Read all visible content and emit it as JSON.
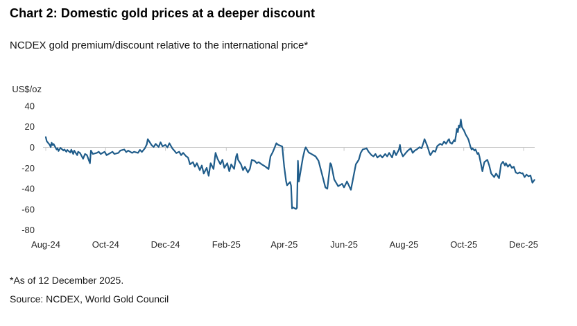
{
  "header": {
    "title": "Chart 2: Domestic gold prices at a deeper discount",
    "subtitle": "NCDEX gold premium/discount relative to the international price*"
  },
  "footnotes": {
    "asof": "*As of 12 December 2025.",
    "source": "Source: NCDEX, World Gold Council"
  },
  "chart_data": {
    "type": "line",
    "title": "Chart 2: Domestic gold prices at a deeper discount",
    "subtitle": "NCDEX gold premium/discount relative to the international price*",
    "unit_label": "US$/oz",
    "xlabel": "",
    "ylabel": "US$/oz",
    "ylim": [
      -80,
      40
    ],
    "y_ticks": [
      40,
      20,
      0,
      -20,
      -40,
      -60,
      -80
    ],
    "x_ticks": [
      {
        "label": "Aug-24",
        "date": "2024-08-01"
      },
      {
        "label": "Oct-24",
        "date": "2024-10-01"
      },
      {
        "label": "Dec-24",
        "date": "2024-12-01"
      },
      {
        "label": "Feb-25",
        "date": "2025-02-01"
      },
      {
        "label": "Apr-25",
        "date": "2025-04-01"
      },
      {
        "label": "Jun-25",
        "date": "2025-06-01"
      },
      {
        "label": "Aug-25",
        "date": "2025-08-01"
      },
      {
        "label": "Oct-25",
        "date": "2025-10-01"
      },
      {
        "label": "Dec-25",
        "date": "2025-12-01"
      }
    ],
    "grid": false,
    "legend": "none",
    "line_color": "#1f5c8a",
    "axis_color": "#c8c8c8",
    "series": [
      {
        "name": "NCDEX gold premium/discount relative to international price (US$/oz)",
        "points": [
          [
            "2024-08-01",
            10
          ],
          [
            "2024-08-02",
            6
          ],
          [
            "2024-08-05",
            2.5
          ],
          [
            "2024-08-06",
            0.3
          ],
          [
            "2024-08-07",
            4.5
          ],
          [
            "2024-08-08",
            2.3
          ],
          [
            "2024-08-09",
            3.3
          ],
          [
            "2024-08-12",
            -2
          ],
          [
            "2024-08-13",
            -0.8
          ],
          [
            "2024-08-14",
            -3.5
          ],
          [
            "2024-08-16",
            -0.5
          ],
          [
            "2024-08-19",
            -3
          ],
          [
            "2024-08-20",
            -2
          ],
          [
            "2024-08-22",
            -4.2
          ],
          [
            "2024-08-23",
            -2.5
          ],
          [
            "2024-08-26",
            -5
          ],
          [
            "2024-08-27",
            -2.2
          ],
          [
            "2024-08-29",
            -6.4
          ],
          [
            "2024-08-30",
            -3.1
          ],
          [
            "2024-09-02",
            -7.5
          ],
          [
            "2024-09-03",
            -4.2
          ],
          [
            "2024-09-05",
            -5.5
          ],
          [
            "2024-09-08",
            -11
          ],
          [
            "2024-09-10",
            -6.4
          ],
          [
            "2024-09-12",
            -7.5
          ],
          [
            "2024-09-15",
            -15.3
          ],
          [
            "2024-09-16",
            -3.1
          ],
          [
            "2024-09-18",
            -6.4
          ],
          [
            "2024-09-22",
            -5.3
          ],
          [
            "2024-09-24",
            -4.2
          ],
          [
            "2024-09-26",
            -6.4
          ],
          [
            "2024-09-30",
            -4.2
          ],
          [
            "2024-10-02",
            -7.5
          ],
          [
            "2024-10-06",
            -5.3
          ],
          [
            "2024-10-08",
            -4.2
          ],
          [
            "2024-10-10",
            -6.4
          ],
          [
            "2024-10-14",
            -5.3
          ],
          [
            "2024-10-16",
            -3.1
          ],
          [
            "2024-10-20",
            -2
          ],
          [
            "2024-10-22",
            -4.5
          ],
          [
            "2024-10-24",
            -3.1
          ],
          [
            "2024-10-28",
            -5.3
          ],
          [
            "2024-10-30",
            -4.2
          ],
          [
            "2024-11-03",
            -5.3
          ],
          [
            "2024-11-05",
            -2.4
          ],
          [
            "2024-11-07",
            -4.4
          ],
          [
            "2024-11-10",
            -0.9
          ],
          [
            "2024-11-12",
            3
          ],
          [
            "2024-11-13",
            8
          ],
          [
            "2024-11-17",
            2
          ],
          [
            "2024-11-19",
            0.4
          ],
          [
            "2024-11-21",
            3.4
          ],
          [
            "2024-11-24",
            0.4
          ],
          [
            "2024-11-26",
            5
          ],
          [
            "2024-11-28",
            1
          ],
          [
            "2024-12-01",
            2.4
          ],
          [
            "2024-12-03",
            0
          ],
          [
            "2024-12-05",
            4
          ],
          [
            "2024-12-08",
            -1
          ],
          [
            "2024-12-10",
            -3.1
          ],
          [
            "2024-12-12",
            -5.5
          ],
          [
            "2024-12-15",
            -4.2
          ],
          [
            "2024-12-17",
            -7.5
          ],
          [
            "2024-12-19",
            -5.3
          ],
          [
            "2024-12-22",
            -8.5
          ],
          [
            "2024-12-24",
            -9.8
          ],
          [
            "2024-12-26",
            -16.4
          ],
          [
            "2024-12-29",
            -14.2
          ],
          [
            "2024-12-31",
            -18.7
          ],
          [
            "2025-01-02",
            -15.3
          ],
          [
            "2025-01-05",
            -22
          ],
          [
            "2025-01-07",
            -17.5
          ],
          [
            "2025-01-09",
            -25.3
          ],
          [
            "2025-01-12",
            -19.8
          ],
          [
            "2025-01-14",
            -27.5
          ],
          [
            "2025-01-16",
            -15.3
          ],
          [
            "2025-01-19",
            -20.9
          ],
          [
            "2025-01-21",
            -5.3
          ],
          [
            "2025-01-23",
            -10.9
          ],
          [
            "2025-01-26",
            -16.4
          ],
          [
            "2025-01-28",
            -12
          ],
          [
            "2025-01-30",
            -19.8
          ],
          [
            "2025-02-02",
            -15.3
          ],
          [
            "2025-02-04",
            -23.1
          ],
          [
            "2025-02-06",
            -16.4
          ],
          [
            "2025-02-09",
            -20.9
          ],
          [
            "2025-02-11",
            -8.7
          ],
          [
            "2025-02-12",
            -6.4
          ],
          [
            "2025-02-13",
            -12
          ],
          [
            "2025-02-16",
            -16.4
          ],
          [
            "2025-02-18",
            -22
          ],
          [
            "2025-02-20",
            -18.7
          ],
          [
            "2025-02-23",
            -24.2
          ],
          [
            "2025-02-25",
            -20.9
          ],
          [
            "2025-02-27",
            -12
          ],
          [
            "2025-03-02",
            -13.1
          ],
          [
            "2025-03-04",
            -15.3
          ],
          [
            "2025-03-06",
            -14.2
          ],
          [
            "2025-03-09",
            -16.4
          ],
          [
            "2025-03-11",
            -17.5
          ],
          [
            "2025-03-13",
            -18.7
          ],
          [
            "2025-03-16",
            -21
          ],
          [
            "2025-03-18",
            -8.7
          ],
          [
            "2025-03-20",
            -5.3
          ],
          [
            "2025-03-22",
            -0.9
          ],
          [
            "2025-03-24",
            4
          ],
          [
            "2025-03-26",
            2.4
          ],
          [
            "2025-03-30",
            0.9
          ],
          [
            "2025-04-01",
            -18.7
          ],
          [
            "2025-04-03",
            -33
          ],
          [
            "2025-04-04",
            -36.7
          ],
          [
            "2025-04-07",
            -33.5
          ],
          [
            "2025-04-08",
            -37
          ],
          [
            "2025-04-09",
            -59
          ],
          [
            "2025-04-10",
            -58
          ],
          [
            "2025-04-13",
            -59.6
          ],
          [
            "2025-04-14",
            -58.5
          ],
          [
            "2025-04-15",
            -13
          ],
          [
            "2025-04-16",
            -33
          ],
          [
            "2025-04-20",
            -10
          ],
          [
            "2025-04-22",
            -2
          ],
          [
            "2025-04-23",
            0
          ],
          [
            "2025-04-26",
            -5
          ],
          [
            "2025-04-29",
            -6.5
          ],
          [
            "2025-05-03",
            -8.7
          ],
          [
            "2025-05-06",
            -13
          ],
          [
            "2025-05-09",
            -24
          ],
          [
            "2025-05-13",
            -38.7
          ],
          [
            "2025-05-15",
            -40
          ],
          [
            "2025-05-18",
            -15.3
          ],
          [
            "2025-05-19",
            -16.7
          ],
          [
            "2025-05-22",
            -31
          ],
          [
            "2025-05-26",
            -37.5
          ],
          [
            "2025-05-30",
            -35.3
          ],
          [
            "2025-06-01",
            -38.7
          ],
          [
            "2025-06-04",
            -33
          ],
          [
            "2025-06-08",
            -41
          ],
          [
            "2025-06-13",
            -16.4
          ],
          [
            "2025-06-16",
            -12
          ],
          [
            "2025-06-18",
            -5.3
          ],
          [
            "2025-06-20",
            -2
          ],
          [
            "2025-06-24",
            -0.9
          ],
          [
            "2025-06-26",
            -4.2
          ],
          [
            "2025-06-29",
            -7.5
          ],
          [
            "2025-07-01",
            -8.7
          ],
          [
            "2025-07-03",
            -6.4
          ],
          [
            "2025-07-05",
            -9.8
          ],
          [
            "2025-07-08",
            -7.5
          ],
          [
            "2025-07-10",
            -9.8
          ],
          [
            "2025-07-13",
            -6.4
          ],
          [
            "2025-07-15",
            -8.7
          ],
          [
            "2025-07-17",
            -5.3
          ],
          [
            "2025-07-20",
            -9.8
          ],
          [
            "2025-07-22",
            -3.1
          ],
          [
            "2025-07-24",
            -7.5
          ],
          [
            "2025-07-27",
            -2
          ],
          [
            "2025-07-28",
            2.4
          ],
          [
            "2025-07-29",
            -4.2
          ],
          [
            "2025-07-31",
            -8.7
          ],
          [
            "2025-08-03",
            -5.3
          ],
          [
            "2025-08-05",
            -3.1
          ],
          [
            "2025-08-08",
            -0.9
          ],
          [
            "2025-08-10",
            -5.3
          ],
          [
            "2025-08-12",
            -3.1
          ],
          [
            "2025-08-14",
            -2
          ],
          [
            "2025-08-17",
            0.2
          ],
          [
            "2025-08-19",
            -0.9
          ],
          [
            "2025-08-21",
            4.7
          ],
          [
            "2025-08-22",
            8
          ],
          [
            "2025-08-24",
            3.5
          ],
          [
            "2025-08-26",
            -2
          ],
          [
            "2025-08-27",
            -5.3
          ],
          [
            "2025-08-28",
            -7.5
          ],
          [
            "2025-08-31",
            -3.1
          ],
          [
            "2025-09-02",
            -4.2
          ],
          [
            "2025-09-04",
            1.3
          ],
          [
            "2025-09-07",
            3.5
          ],
          [
            "2025-09-09",
            2.4
          ],
          [
            "2025-09-11",
            5.8
          ],
          [
            "2025-09-13",
            3.5
          ],
          [
            "2025-09-15",
            6.9
          ],
          [
            "2025-09-16",
            8
          ],
          [
            "2025-09-17",
            4.7
          ],
          [
            "2025-09-19",
            3.5
          ],
          [
            "2025-09-21",
            6.9
          ],
          [
            "2025-09-22",
            5.8
          ],
          [
            "2025-09-23",
            11.3
          ],
          [
            "2025-09-24",
            18
          ],
          [
            "2025-09-25",
            14.7
          ],
          [
            "2025-09-26",
            21.3
          ],
          [
            "2025-09-27",
            19.1
          ],
          [
            "2025-09-28",
            26.9
          ],
          [
            "2025-09-29",
            20.2
          ],
          [
            "2025-09-30",
            18
          ],
          [
            "2025-10-01",
            16.9
          ],
          [
            "2025-10-02",
            14.7
          ],
          [
            "2025-10-03",
            12.4
          ],
          [
            "2025-10-05",
            9.1
          ],
          [
            "2025-10-06",
            6.9
          ],
          [
            "2025-10-07",
            3.5
          ],
          [
            "2025-10-08",
            0.2
          ],
          [
            "2025-10-09",
            -2
          ],
          [
            "2025-10-10",
            -0.9
          ],
          [
            "2025-10-12",
            -3.1
          ],
          [
            "2025-10-13",
            -2
          ],
          [
            "2025-10-15",
            -6.4
          ],
          [
            "2025-10-16",
            -5.3
          ],
          [
            "2025-10-17",
            -8.7
          ],
          [
            "2025-10-20",
            -23.1
          ],
          [
            "2025-10-22",
            -14.2
          ],
          [
            "2025-10-25",
            -12
          ],
          [
            "2025-10-27",
            -17.6
          ],
          [
            "2025-10-29",
            -25.3
          ],
          [
            "2025-11-01",
            -28.7
          ],
          [
            "2025-11-03",
            -25.3
          ],
          [
            "2025-11-06",
            -29.8
          ],
          [
            "2025-11-08",
            -16.4
          ],
          [
            "2025-11-10",
            -13.8
          ],
          [
            "2025-11-12",
            -17.5
          ],
          [
            "2025-11-13",
            -15.3
          ],
          [
            "2025-11-15",
            -18.7
          ],
          [
            "2025-11-17",
            -16.4
          ],
          [
            "2025-11-19",
            -19.8
          ],
          [
            "2025-11-21",
            -18.7
          ],
          [
            "2025-11-23",
            -24.2
          ],
          [
            "2025-11-25",
            -25.3
          ],
          [
            "2025-11-27",
            -24.2
          ],
          [
            "2025-11-29",
            -25.3
          ],
          [
            "2025-11-30",
            -24.9
          ],
          [
            "2025-12-02",
            -28.7
          ],
          [
            "2025-12-04",
            -26.4
          ],
          [
            "2025-12-06",
            -28
          ],
          [
            "2025-12-08",
            -27.1
          ],
          [
            "2025-12-10",
            -34.2
          ],
          [
            "2025-12-12",
            -31.5
          ]
        ]
      }
    ]
  }
}
